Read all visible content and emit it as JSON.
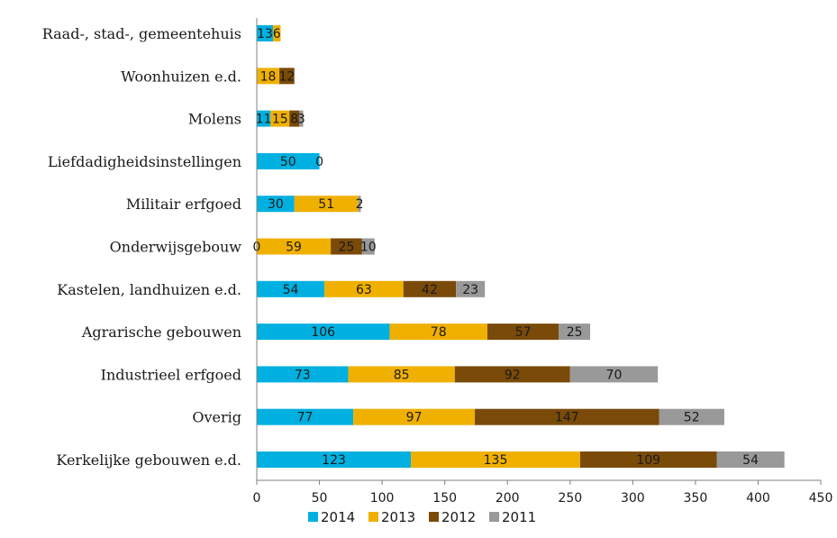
{
  "chart_data": {
    "type": "bar",
    "orientation": "horizontal",
    "stacked": true,
    "categories": [
      "Raad-, stad-, gemeentehuis",
      "Woonhuizen e.d.",
      "Molens",
      "Liefdadigheidsinstellingen",
      "Militair erfgoed",
      "Onderwijsgebouw",
      "Kastelen, landhuizen e.d.",
      "Agrarische gebouwen",
      "Industrieel erfgoed",
      "Overig",
      "Kerkelijke gebouwen e.d."
    ],
    "series": [
      {
        "name": "2014",
        "color": "#00b0e0",
        "values": [
          13,
          0,
          11,
          50,
          30,
          0,
          54,
          106,
          73,
          77,
          123
        ]
      },
      {
        "name": "2013",
        "color": "#f0b000",
        "values": [
          6,
          18,
          15,
          0,
          51,
          59,
          63,
          78,
          85,
          97,
          135
        ]
      },
      {
        "name": "2012",
        "color": "#7a4a08",
        "values": [
          0,
          12,
          8,
          0,
          0,
          25,
          42,
          57,
          92,
          147,
          109
        ]
      },
      {
        "name": "2011",
        "color": "#999999",
        "values": [
          0,
          0,
          3,
          0,
          2,
          10,
          23,
          25,
          70,
          52,
          54
        ]
      }
    ],
    "data_labels": [
      [
        "13",
        "6",
        "",
        ""
      ],
      [
        "",
        "18",
        "12",
        ""
      ],
      [
        "11",
        "15",
        "8",
        "3"
      ],
      [
        "50",
        "0",
        "",
        ""
      ],
      [
        "30",
        "51",
        "",
        "2"
      ],
      [
        "0",
        "59",
        "25",
        "10"
      ],
      [
        "54",
        "63",
        "42",
        "23"
      ],
      [
        "106",
        "78",
        "57",
        "25"
      ],
      [
        "73",
        "85",
        "92",
        "70"
      ],
      [
        "77",
        "97",
        "147",
        "52"
      ],
      [
        "123",
        "135",
        "109",
        "54"
      ]
    ],
    "xlim": [
      0,
      450
    ],
    "xticks": [
      "0",
      "50",
      "100",
      "150",
      "200",
      "250",
      "300",
      "350",
      "400",
      "450"
    ],
    "title": "",
    "xlabel": "",
    "ylabel": "",
    "grid": false,
    "legend_position": "bottom"
  }
}
